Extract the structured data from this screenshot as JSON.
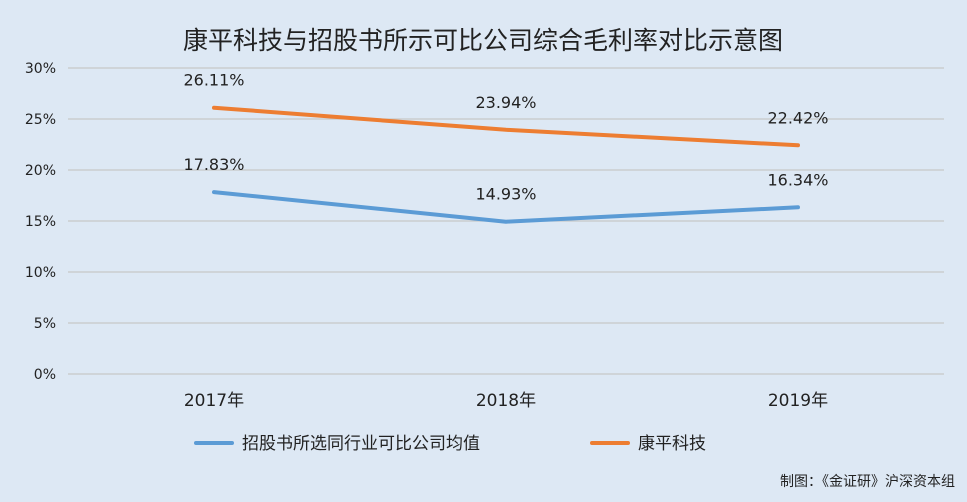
{
  "chart_data": {
    "type": "line",
    "title": "康平科技与招股书所示可比公司综合毛利率对比示意图",
    "categories": [
      "2017年",
      "2018年",
      "2019年"
    ],
    "y_ticks": [
      "0%",
      "5%",
      "10%",
      "15%",
      "20%",
      "25%",
      "30%"
    ],
    "ylim": [
      0,
      30
    ],
    "y_unit": "%",
    "grid": true,
    "legend_position": "bottom",
    "series": [
      {
        "name": "招股书所选同行业可比公司均值",
        "color": "#5b9bd5",
        "values": [
          17.83,
          14.93,
          16.34
        ],
        "labels": [
          "17.83%",
          "14.93%",
          "16.34%"
        ]
      },
      {
        "name": "康平科技",
        "color": "#ed7d31",
        "values": [
          26.11,
          23.94,
          22.42
        ],
        "labels": [
          "26.11%",
          "23.94%",
          "22.42%"
        ]
      }
    ],
    "source_note": "制图：《金证研》沪深资本组"
  }
}
